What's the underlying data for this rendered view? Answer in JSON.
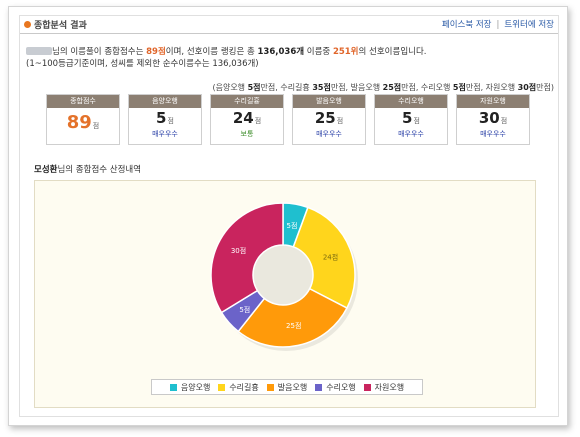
{
  "header": {
    "title": "종합분석 결과",
    "link_save_facebook": "페이스북 저장",
    "link_save_twitter": "트위터에 저장"
  },
  "summary": {
    "line1_a": "님의 이름풀이 종합점수는 ",
    "line1_score": "89점",
    "line1_b": "이며, 선호이름 랭킹은 총 ",
    "line1_total": "136,036개",
    "line1_c": " 이름중 ",
    "line1_rank": "251위",
    "line1_d": "의 선호이름입니다.",
    "line2": "(1~100등급기준이며, 성씨를 제외한 순수이름수는 136,036개)"
  },
  "criteria": {
    "p1": "(음양오행 ",
    "v1": "5점",
    "p2": "만점, 수리길흉 ",
    "v2": "35점",
    "p3": "만점, 발음오행 ",
    "v3": "25점",
    "p4": "만점, 수리오행 ",
    "v4": "5점",
    "p5": "만점, 자원오행 ",
    "v5": "30점",
    "p6": "만점)"
  },
  "scores": [
    {
      "label": "종합점수",
      "value": "89",
      "unit": "점",
      "grade": ""
    },
    {
      "label": "음양오행",
      "value": "5",
      "unit": "점",
      "grade": "매우우수"
    },
    {
      "label": "수리길흉",
      "value": "24",
      "unit": "점",
      "grade": "보통"
    },
    {
      "label": "발음오행",
      "value": "25",
      "unit": "점",
      "grade": "매우우수"
    },
    {
      "label": "수리오행",
      "value": "5",
      "unit": "점",
      "grade": "매우우수"
    },
    {
      "label": "자원오행",
      "value": "30",
      "unit": "점",
      "grade": "매우우수"
    }
  ],
  "section_title": {
    "name": "모성환",
    "text": "님의 종합점수 산정내역"
  },
  "chart_data": {
    "type": "pie",
    "donut": true,
    "categories": [
      "음양오행",
      "수리길흉",
      "발음오행",
      "수리오행",
      "자원오행"
    ],
    "values": [
      5,
      24,
      25,
      5,
      30
    ],
    "data_labels": [
      "5점",
      "24점",
      "25점",
      "5점",
      "30점"
    ],
    "colors": [
      "#1fbfcf",
      "#ffd51c",
      "#ff9a0a",
      "#6b63c9",
      "#c9245e"
    ],
    "legend_placement": "bottom"
  }
}
